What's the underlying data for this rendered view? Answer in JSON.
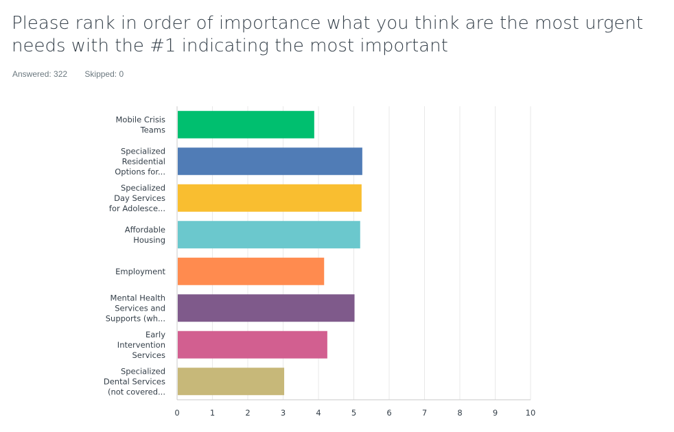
{
  "question": {
    "title": "Please rank in order of importance what you think are the most urgent needs with the #1 indicating the most important"
  },
  "stats": {
    "answered": "Answered: 322",
    "skipped": "Skipped: 0"
  },
  "chart_data": {
    "type": "bar",
    "orientation": "horizontal",
    "categories": [
      [
        "Mobile Crisis",
        "Teams"
      ],
      [
        "Specialized",
        "Residential",
        "Options for..."
      ],
      [
        "Specialized",
        "Day Services",
        "for Adolesce..."
      ],
      [
        "Affordable",
        "Housing"
      ],
      [
        "Employment"
      ],
      [
        "Mental Health",
        "Services and",
        "Supports (wh..."
      ],
      [
        "Early",
        "Intervention",
        "Services"
      ],
      [
        "Specialized",
        "Dental Services",
        "(not covered..."
      ]
    ],
    "values": [
      3.88,
      5.24,
      5.22,
      5.18,
      4.16,
      5.02,
      4.25,
      3.03
    ],
    "colors": [
      "#00bf6f",
      "#507cb6",
      "#f9be30",
      "#6bc8cd",
      "#ff8b4f",
      "#7f5a8b",
      "#d25f90",
      "#c7b879"
    ],
    "xticks": [
      "0",
      "1",
      "2",
      "3",
      "4",
      "5",
      "6",
      "7",
      "8",
      "9",
      "10"
    ],
    "xlim": [
      0,
      10
    ],
    "grid": true,
    "gridColor": "#e8e8e8",
    "axisColor": "#c9c9c9"
  }
}
